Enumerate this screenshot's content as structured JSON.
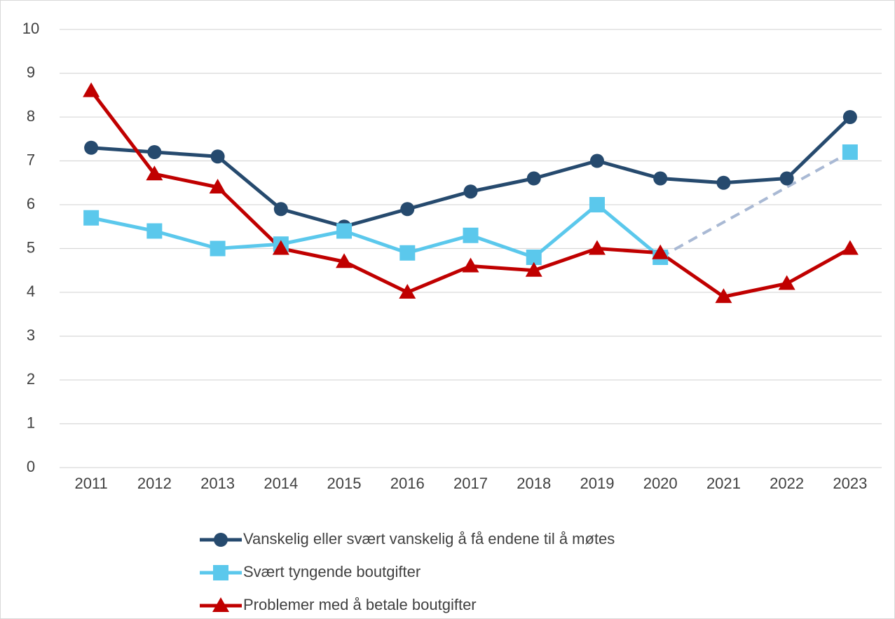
{
  "chart_data": {
    "type": "line",
    "categories": [
      "2011",
      "2012",
      "2013",
      "2014",
      "2015",
      "2016",
      "2017",
      "2018",
      "2019",
      "2020",
      "2021",
      "2022",
      "2023"
    ],
    "series": [
      {
        "name": "Vanskelig eller svært vanskelig å få endene til å møtes",
        "color": "#264a6e",
        "marker": "circle",
        "values": [
          7.3,
          7.2,
          7.1,
          5.9,
          5.5,
          5.9,
          6.3,
          6.6,
          7.0,
          6.6,
          6.5,
          6.6,
          8.0
        ]
      },
      {
        "name": "Svært tyngende boutgifter",
        "color": "#5bc8ec",
        "marker": "square",
        "values": [
          5.7,
          5.4,
          5.0,
          5.1,
          5.4,
          4.9,
          5.3,
          4.8,
          6.0,
          4.8,
          null,
          null,
          7.2
        ]
      },
      {
        "name": "Problemer med å betale boutgifter",
        "color": "#c00000",
        "marker": "triangle",
        "values": [
          8.6,
          6.7,
          6.4,
          5.0,
          4.7,
          4.0,
          4.6,
          4.5,
          5.0,
          4.9,
          3.9,
          4.2,
          5.0
        ]
      }
    ],
    "gap_color": "#a9b9d4",
    "ylim": [
      0,
      10
    ],
    "yticks": [
      0,
      1,
      2,
      3,
      4,
      5,
      6,
      7,
      8,
      9,
      10
    ],
    "grid": true,
    "legend": "bottom"
  }
}
